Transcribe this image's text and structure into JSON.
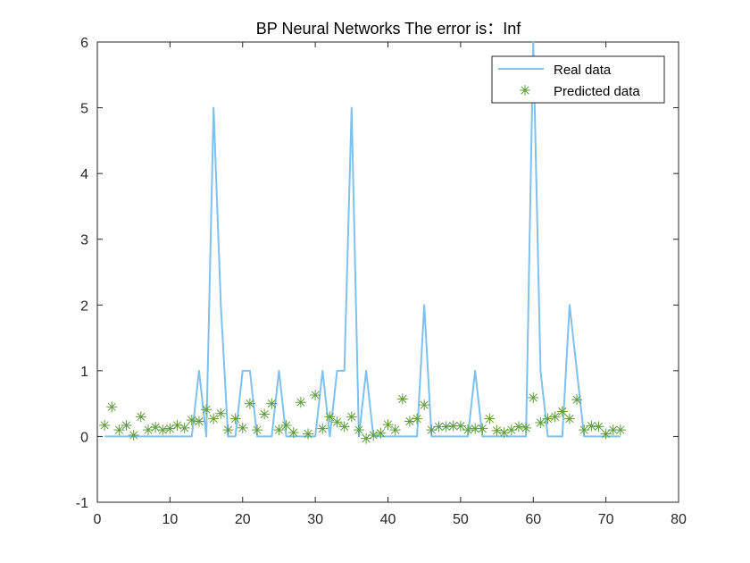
{
  "chart_data": {
    "type": "line",
    "title": "BP Neural Networks   The error is：Inf",
    "xlabel": "",
    "ylabel": "",
    "xlim": [
      0,
      80
    ],
    "ylim": [
      -1,
      6
    ],
    "x_ticks": [
      0,
      10,
      20,
      30,
      40,
      50,
      60,
      70,
      80
    ],
    "y_ticks": [
      -1,
      0,
      1,
      2,
      3,
      4,
      5,
      6
    ],
    "grid": false,
    "legend_position": "top-right",
    "series": [
      {
        "name": "Real data",
        "style": "line",
        "color": "#7ec1ee",
        "x": [
          1,
          2,
          3,
          4,
          5,
          6,
          7,
          8,
          9,
          10,
          11,
          12,
          13,
          14,
          15,
          16,
          17,
          18,
          19,
          20,
          21,
          22,
          23,
          24,
          25,
          26,
          27,
          28,
          29,
          30,
          31,
          32,
          33,
          34,
          35,
          36,
          37,
          38,
          39,
          40,
          41,
          42,
          43,
          44,
          45,
          46,
          47,
          48,
          49,
          50,
          51,
          52,
          53,
          54,
          55,
          56,
          57,
          58,
          59,
          60,
          61,
          62,
          63,
          64,
          65,
          66,
          67,
          68,
          69,
          70,
          71,
          72
        ],
        "values": [
          0,
          0,
          0,
          0,
          0,
          0,
          0,
          0,
          0,
          0,
          0,
          0,
          0,
          1,
          0,
          5,
          2,
          0,
          0,
          1,
          1,
          0,
          0,
          0,
          1,
          0,
          0,
          0,
          0,
          0,
          1,
          0,
          1,
          1,
          5,
          0,
          1,
          0,
          0,
          0,
          0,
          0,
          0,
          0,
          2,
          0,
          0,
          0,
          0,
          0,
          0,
          1,
          0,
          0,
          0,
          0,
          0,
          0,
          0,
          6,
          1,
          0,
          0,
          0,
          2,
          1,
          0,
          0,
          0,
          0,
          0,
          0
        ]
      },
      {
        "name": "Predicted data",
        "style": "marker",
        "marker": "asterisk",
        "color": "#5c9c3a",
        "x": [
          1,
          2,
          3,
          4,
          5,
          6,
          7,
          8,
          9,
          10,
          11,
          12,
          13,
          14,
          15,
          16,
          17,
          18,
          19,
          20,
          21,
          22,
          23,
          24,
          25,
          26,
          27,
          28,
          29,
          30,
          31,
          32,
          33,
          34,
          35,
          36,
          37,
          38,
          39,
          40,
          41,
          42,
          43,
          44,
          45,
          46,
          47,
          48,
          49,
          50,
          51,
          52,
          53,
          54,
          55,
          56,
          57,
          58,
          59,
          60,
          61,
          62,
          63,
          64,
          65,
          66,
          67,
          68,
          69,
          70,
          71,
          72
        ],
        "values": [
          0.17,
          0.45,
          0.1,
          0.17,
          0.02,
          0.3,
          0.1,
          0.14,
          0.1,
          0.12,
          0.17,
          0.13,
          0.25,
          0.23,
          0.41,
          0.27,
          0.35,
          0.1,
          0.27,
          0.13,
          0.5,
          0.1,
          0.34,
          0.5,
          0.1,
          0.17,
          0.06,
          0.52,
          0.04,
          0.63,
          0.12,
          0.3,
          0.22,
          0.15,
          0.3,
          0.1,
          -0.03,
          0.02,
          0.05,
          0.18,
          0.1,
          0.57,
          0.23,
          0.27,
          0.48,
          0.1,
          0.15,
          0.15,
          0.16,
          0.16,
          0.1,
          0.12,
          0.12,
          0.27,
          0.09,
          0.06,
          0.1,
          0.15,
          0.13,
          0.59,
          0.21,
          0.27,
          0.3,
          0.38,
          0.27,
          0.56,
          0.1,
          0.16,
          0.15,
          0.04,
          0.1,
          0.1
        ]
      }
    ]
  }
}
